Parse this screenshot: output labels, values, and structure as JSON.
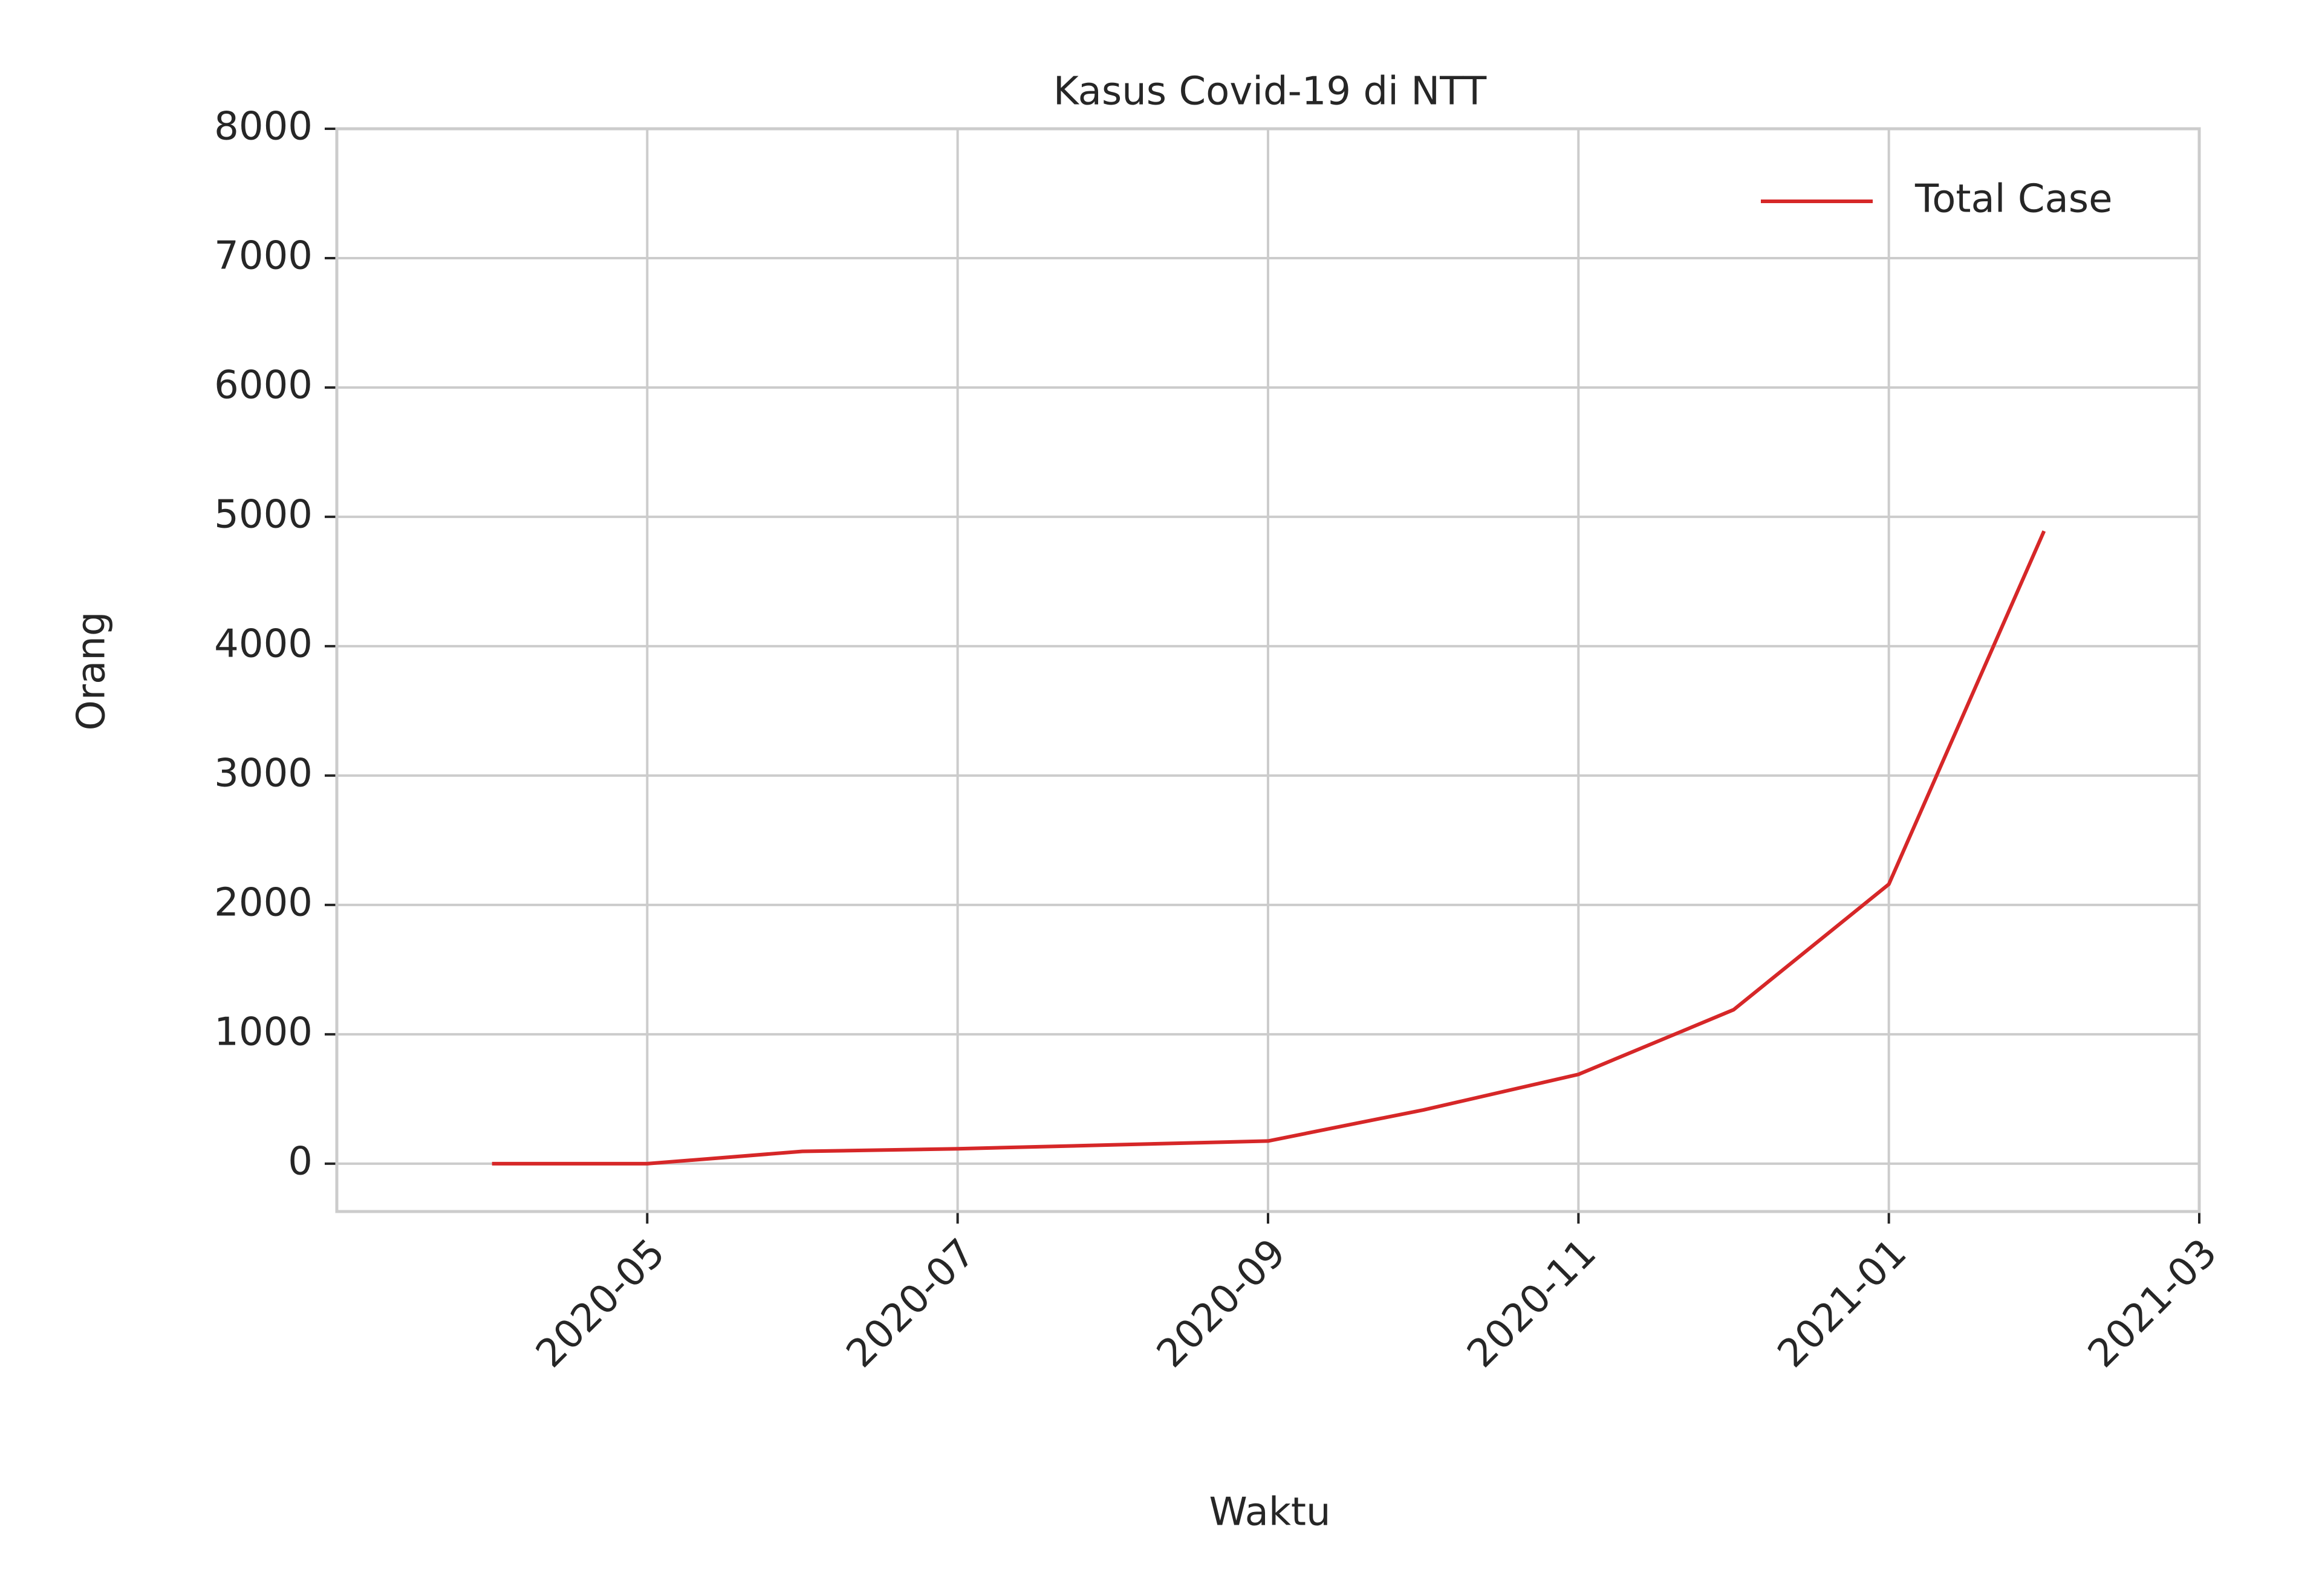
{
  "chart_data": {
    "type": "line",
    "title": "Kasus Covid-19 di NTT",
    "x_label": "Waktu",
    "y_label": "Orang",
    "x": [
      "2020-03",
      "2020-04",
      "2020-05",
      "2020-06",
      "2020-07",
      "2020-08",
      "2020-09",
      "2020-10",
      "2020-11",
      "2020-12",
      "2021-01",
      "2021-02",
      "2021-03"
    ],
    "series": [
      {
        "name": "Total Case",
        "color": "#d62728",
        "values": [
          null,
          0,
          0,
          95,
          115,
          145,
          175,
          415,
          690,
          1190,
          2160,
          4890,
          null
        ]
      }
    ],
    "xlim": [
      "2020-03",
      "2021-03"
    ],
    "xticks": [
      "2020-05",
      "2020-07",
      "2020-09",
      "2020-11",
      "2021-01",
      "2021-03"
    ],
    "ylim": [
      -370,
      8000
    ],
    "yticks": [
      0,
      1000,
      2000,
      3000,
      4000,
      5000,
      6000,
      7000,
      8000
    ],
    "grid": true,
    "legend": "upper right"
  }
}
